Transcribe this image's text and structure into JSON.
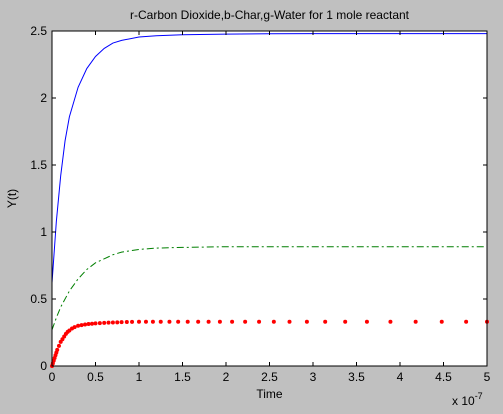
{
  "chart_data": {
    "type": "line",
    "title": "r-Carbon Dioxide,b-Char,g-Water for 1 mole reactant",
    "xlabel": "Time",
    "ylabel": "Y(t)",
    "x_multiplier_base": "x 10",
    "x_multiplier_exponent": "-7",
    "xlim": [
      0,
      5
    ],
    "ylim": [
      0,
      2.5
    ],
    "xticks": [
      "0",
      "0.5",
      "1",
      "1.5",
      "2",
      "2.5",
      "3",
      "3.5",
      "4",
      "4.5",
      "5"
    ],
    "yticks": [
      "0",
      "0.5",
      "1",
      "1.5",
      "2",
      "2.5"
    ],
    "grid": false,
    "series": [
      {
        "color": "#0000ff",
        "line_style": "solid",
        "x": [
          0,
          0.05,
          0.1,
          0.15,
          0.2,
          0.3,
          0.4,
          0.5,
          0.6,
          0.7,
          0.8,
          1.0,
          1.2,
          1.5,
          2.0,
          2.5,
          3.0,
          4.0,
          5.0
        ],
        "values": [
          0.62,
          1.08,
          1.42,
          1.68,
          1.86,
          2.08,
          2.22,
          2.31,
          2.37,
          2.41,
          2.43,
          2.455,
          2.465,
          2.472,
          2.477,
          2.479,
          2.48,
          2.48,
          2.48
        ]
      },
      {
        "color": "#007f00",
        "line_style": "dash-dot",
        "x": [
          0,
          0.05,
          0.1,
          0.2,
          0.3,
          0.4,
          0.5,
          0.6,
          0.7,
          0.8,
          1.0,
          1.2,
          1.5,
          2.0,
          2.5,
          3.0,
          4.0,
          5.0
        ],
        "values": [
          0.27,
          0.36,
          0.44,
          0.56,
          0.65,
          0.72,
          0.77,
          0.8,
          0.83,
          0.85,
          0.87,
          0.88,
          0.885,
          0.89,
          0.89,
          0.89,
          0.89,
          0.89
        ]
      },
      {
        "color": "#ff0000",
        "line_style": "dotted-markers",
        "x": [
          0,
          0.01,
          0.02,
          0.03,
          0.04,
          0.05,
          0.06,
          0.08,
          0.1,
          0.12,
          0.14,
          0.16,
          0.18,
          0.2,
          0.23,
          0.26,
          0.3,
          0.34,
          0.38,
          0.42,
          0.46,
          0.5,
          0.55,
          0.6,
          0.65,
          0.7,
          0.75,
          0.8,
          0.86,
          0.92,
          1.0,
          1.08,
          1.16,
          1.25,
          1.35,
          1.45,
          1.56,
          1.68,
          1.8,
          1.93,
          2.07,
          2.22,
          2.38,
          2.55,
          2.73,
          2.93,
          3.14,
          3.37,
          3.62,
          3.89,
          4.18,
          4.48,
          4.76,
          5.0
        ],
        "values": [
          0.0,
          0.02,
          0.04,
          0.06,
          0.08,
          0.1,
          0.12,
          0.15,
          0.18,
          0.2,
          0.22,
          0.24,
          0.255,
          0.265,
          0.28,
          0.29,
          0.3,
          0.305,
          0.31,
          0.313,
          0.315,
          0.318,
          0.32,
          0.322,
          0.324,
          0.325,
          0.326,
          0.327,
          0.328,
          0.329,
          0.33,
          0.33,
          0.33,
          0.33,
          0.33,
          0.33,
          0.33,
          0.33,
          0.33,
          0.33,
          0.33,
          0.33,
          0.33,
          0.33,
          0.33,
          0.33,
          0.33,
          0.33,
          0.33,
          0.33,
          0.33,
          0.33,
          0.33,
          0.33
        ]
      }
    ]
  }
}
